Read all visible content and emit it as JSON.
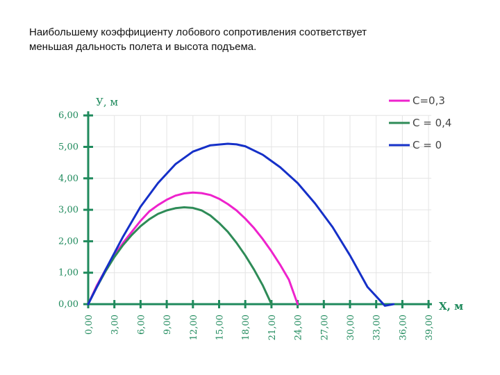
{
  "caption": {
    "line1": "Наибольшему коэффициенту лобового сопротивления соответствует",
    "line2": "меньшая дальность полета и высота подъема."
  },
  "chart_data": {
    "type": "line",
    "ylabel": "У, м",
    "xlabel": "Х, м",
    "xlim": [
      0,
      39
    ],
    "ylim": [
      0,
      6
    ],
    "x_ticks": [
      "0,00",
      "3,00",
      "6,00",
      "9,00",
      "12,00",
      "15,00",
      "18,00",
      "21,00",
      "24,00",
      "27,00",
      "30,00",
      "33,00",
      "36,00",
      "39,00"
    ],
    "y_ticks": [
      "0,00",
      "1,00",
      "2,00",
      "3,00",
      "4,00",
      "5,00",
      "6,00"
    ],
    "grid": true,
    "legend_position": "top-right",
    "series": [
      {
        "name": "С=0,3",
        "color": "#ee22cc",
        "x": [
          0,
          1,
          2,
          3,
          4,
          5,
          6,
          7,
          8,
          9,
          10,
          11,
          12,
          13,
          14,
          15,
          16,
          17,
          18,
          19,
          20,
          21,
          22,
          23,
          24
        ],
        "y": [
          0,
          0.6,
          1.1,
          1.55,
          1.95,
          2.3,
          2.65,
          2.95,
          3.15,
          3.32,
          3.45,
          3.52,
          3.55,
          3.53,
          3.47,
          3.35,
          3.18,
          2.98,
          2.72,
          2.42,
          2.07,
          1.68,
          1.25,
          0.78,
          0
        ]
      },
      {
        "name": "С = 0,4",
        "color": "#2e8b57",
        "x": [
          0,
          1,
          2,
          3,
          4,
          5,
          6,
          7,
          8,
          9,
          10,
          11,
          12,
          13,
          14,
          15,
          16,
          17,
          18,
          19,
          20,
          21
        ],
        "y": [
          0,
          0.55,
          1.05,
          1.5,
          1.88,
          2.2,
          2.48,
          2.7,
          2.87,
          2.98,
          3.05,
          3.08,
          3.06,
          2.98,
          2.82,
          2.58,
          2.3,
          1.95,
          1.55,
          1.1,
          0.6,
          0
        ]
      },
      {
        "name": "С = 0",
        "color": "#1530c8",
        "x": [
          0,
          2,
          4,
          6,
          8,
          10,
          12,
          14,
          16,
          17,
          18,
          20,
          22,
          24,
          26,
          28,
          30,
          32,
          34,
          35
        ],
        "y": [
          0,
          1.1,
          2.15,
          3.1,
          3.85,
          4.45,
          4.85,
          5.05,
          5.1,
          5.08,
          5.02,
          4.75,
          4.35,
          3.85,
          3.2,
          2.45,
          1.55,
          0.55,
          -0.05,
          0
        ]
      }
    ]
  }
}
